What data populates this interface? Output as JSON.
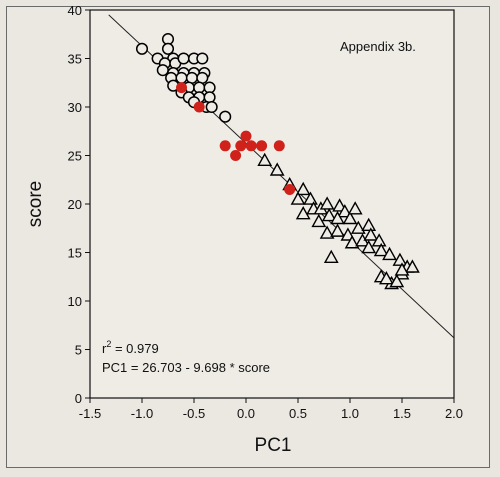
{
  "chart_data": {
    "type": "scatter",
    "annotation_label": "Appendix 3b.",
    "xlabel": "PC1",
    "ylabel": "score",
    "xlim": [
      -1.5,
      2.0
    ],
    "ylim": [
      0,
      40
    ],
    "x_ticks": [
      "-1.5",
      "-1.0",
      "-0.5",
      "0.0",
      "0.5",
      "1.0",
      "1.5",
      "2.0"
    ],
    "y_ticks": [
      "0",
      "5",
      "10",
      "15",
      "20",
      "25",
      "30",
      "35",
      "40"
    ],
    "grid": false,
    "regression": {
      "r2_prefix": "r",
      "r2_sup": "2",
      "r2_value": " = 0.979",
      "equation": "PC1 = 26.703 - 9.698 * score",
      "line": {
        "x": [
          -1.32,
          2.0
        ],
        "y": [
          39.5,
          6.2
        ]
      }
    },
    "series": [
      {
        "marker": "open-circle",
        "color": "#000000",
        "points": [
          [
            -1.0,
            36
          ],
          [
            -0.75,
            37
          ],
          [
            -0.75,
            36
          ],
          [
            -0.7,
            35
          ],
          [
            -0.85,
            35
          ],
          [
            -0.78,
            34.5
          ],
          [
            -0.68,
            34.5
          ],
          [
            -0.6,
            35
          ],
          [
            -0.5,
            35
          ],
          [
            -0.42,
            35
          ],
          [
            -0.8,
            33.8
          ],
          [
            -0.7,
            33.5
          ],
          [
            -0.6,
            33.5
          ],
          [
            -0.5,
            33.5
          ],
          [
            -0.4,
            33.5
          ],
          [
            -0.72,
            33
          ],
          [
            -0.62,
            33
          ],
          [
            -0.52,
            33
          ],
          [
            -0.42,
            33
          ],
          [
            -0.7,
            32.2
          ],
          [
            -0.55,
            32
          ],
          [
            -0.45,
            32
          ],
          [
            -0.35,
            32
          ],
          [
            -0.62,
            31.5
          ],
          [
            -0.55,
            31
          ],
          [
            -0.45,
            31
          ],
          [
            -0.35,
            31
          ],
          [
            -0.5,
            30.5
          ],
          [
            -0.38,
            30
          ],
          [
            -0.33,
            30
          ],
          [
            -0.2,
            29
          ]
        ]
      },
      {
        "marker": "filled-circle",
        "color": "#d0221b",
        "points": [
          [
            -0.62,
            32
          ],
          [
            -0.45,
            30
          ],
          [
            -0.2,
            26
          ],
          [
            -0.1,
            25
          ],
          [
            -0.05,
            26
          ],
          [
            0.0,
            27
          ],
          [
            0.05,
            26
          ],
          [
            0.15,
            26
          ],
          [
            0.32,
            26
          ],
          [
            0.42,
            21.5
          ]
        ]
      },
      {
        "marker": "open-triangle",
        "color": "#000000",
        "points": [
          [
            0.18,
            24.5
          ],
          [
            0.3,
            23.5
          ],
          [
            0.42,
            22
          ],
          [
            0.55,
            21.5
          ],
          [
            0.5,
            20.5
          ],
          [
            0.62,
            20.5
          ],
          [
            0.65,
            19.5
          ],
          [
            0.72,
            19.5
          ],
          [
            0.78,
            20
          ],
          [
            0.55,
            19
          ],
          [
            0.7,
            18.2
          ],
          [
            0.8,
            18.8
          ],
          [
            0.9,
            19.8
          ],
          [
            0.95,
            19.2
          ],
          [
            0.88,
            18.5
          ],
          [
            1.0,
            18.5
          ],
          [
            1.05,
            19.5
          ],
          [
            0.78,
            17
          ],
          [
            0.88,
            17.2
          ],
          [
            0.98,
            16.8
          ],
          [
            1.08,
            17.5
          ],
          [
            1.18,
            17.8
          ],
          [
            1.02,
            16
          ],
          [
            1.12,
            16.2
          ],
          [
            1.2,
            16.8
          ],
          [
            1.28,
            16.2
          ],
          [
            1.18,
            15.5
          ],
          [
            0.82,
            14.5
          ],
          [
            1.3,
            15.2
          ],
          [
            1.38,
            14.8
          ],
          [
            1.48,
            14.2
          ],
          [
            1.55,
            13.5
          ],
          [
            1.6,
            13.5
          ],
          [
            1.3,
            12.5
          ],
          [
            1.4,
            11.8
          ],
          [
            1.5,
            12.8
          ],
          [
            1.5,
            13.2
          ],
          [
            1.35,
            12.3
          ],
          [
            1.45,
            12
          ]
        ]
      }
    ]
  }
}
